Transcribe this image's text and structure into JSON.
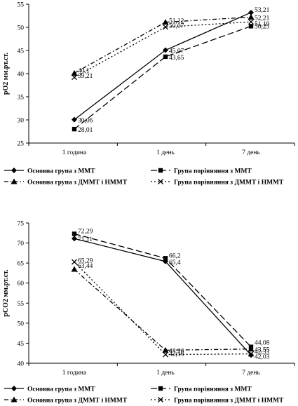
{
  "chart_data": [
    {
      "type": "line",
      "ylabel": "pO2 мм.рт.ст.",
      "xlabel": "",
      "categories": [
        "1 година",
        "1 день",
        "7 день"
      ],
      "ylim": [
        25,
        55
      ],
      "yticks": [
        25,
        30,
        35,
        40,
        45,
        50,
        55
      ],
      "series": [
        {
          "name": "Основна група з ММТ",
          "values": [
            30.06,
            45.07,
            53.21
          ],
          "labels": [
            "30,06",
            "45,07",
            "53,21"
          ],
          "marker": "diamond",
          "dash": "solid"
        },
        {
          "name": "Група порівняння з ММТ",
          "values": [
            28.01,
            43.65,
            50.25
          ],
          "labels": [
            "28,01",
            "43,65",
            "50,25"
          ],
          "marker": "square",
          "dash": "longdash"
        },
        {
          "name": "Основна група з ДММТ і НММТ",
          "values": [
            40.1,
            51.12,
            52.21
          ],
          "labels": [
            "40,1",
            "51,12",
            "52,21"
          ],
          "marker": "triangle",
          "dash": "dashdot"
        },
        {
          "name": "Група порівняння з ДММТ і НММТ",
          "values": [
            39.21,
            50.07,
            51.19
          ],
          "labels": [
            "39,21",
            "50,07",
            "51,19"
          ],
          "marker": "x",
          "dash": "dotted"
        }
      ],
      "legend_position": "bottom",
      "grid": false
    },
    {
      "type": "line",
      "ylabel": "pCO2 мм.рт.ст.",
      "xlabel": "",
      "categories": [
        "1 година",
        "1 день",
        "7 день"
      ],
      "ylim": [
        40,
        75
      ],
      "yticks": [
        40,
        45,
        50,
        55,
        60,
        65,
        70,
        75
      ],
      "series": [
        {
          "name": "Основна група з ММТ",
          "values": [
            71.11,
            65.4,
            42.03
          ],
          "labels": [
            "71,11",
            "65,4",
            "42,03"
          ],
          "marker": "diamond",
          "dash": "solid"
        },
        {
          "name": "Група порівняння з ММТ",
          "values": [
            72.29,
            66.2,
            44.08
          ],
          "labels": [
            "72,29",
            "66,2",
            "44,08"
          ],
          "marker": "square",
          "dash": "longdash"
        },
        {
          "name": "Основна група з ДММТ і НММТ",
          "values": [
            63.44,
            43.26,
            43.55
          ],
          "labels": [
            "63,44",
            "43,26",
            "43,55"
          ],
          "marker": "triangle",
          "dash": "dashdot"
        },
        {
          "name": "Група порівняння з ДММТ і НММТ",
          "values": [
            65.29,
            42.16,
            42.33
          ],
          "labels": [
            "65,29",
            "42,16",
            "42,33"
          ],
          "marker": "x",
          "dash": "dotted"
        }
      ],
      "legend_position": "bottom",
      "grid": false
    }
  ]
}
